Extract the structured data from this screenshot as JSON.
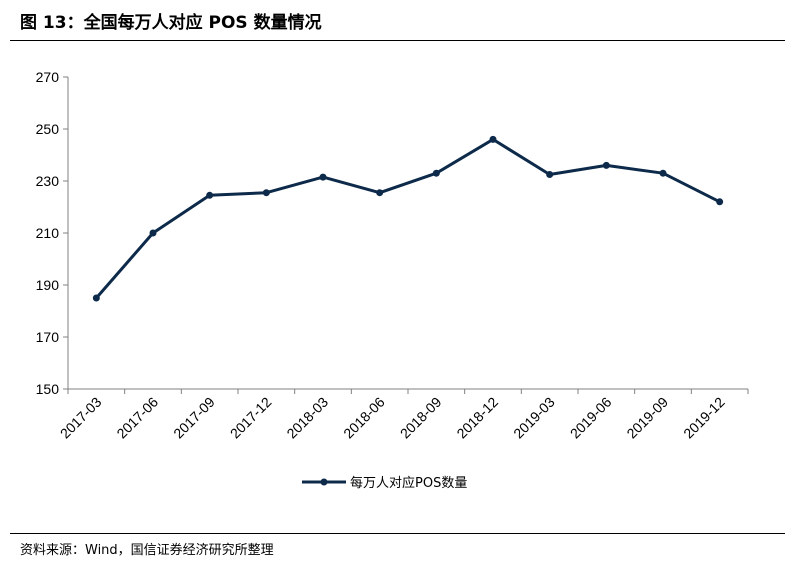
{
  "figure": {
    "title": "图 13：全国每万人对应 POS 数量情况",
    "source": "资料来源：Wind，国信证券经济研究所整理"
  },
  "chart_data": {
    "type": "line",
    "categories": [
      "2017-03",
      "2017-06",
      "2017-09",
      "2017-12",
      "2018-03",
      "2018-06",
      "2018-09",
      "2018-12",
      "2019-03",
      "2019-06",
      "2019-09",
      "2019-12"
    ],
    "series": [
      {
        "name": "每万人对应POS数量",
        "values": [
          185,
          210,
          224.5,
          225.5,
          231.5,
          225.5,
          233,
          246,
          232.5,
          236,
          233,
          222
        ]
      }
    ],
    "ylim": [
      150,
      270
    ],
    "yticks": [
      150,
      170,
      190,
      210,
      230,
      250,
      270
    ],
    "legend_position": "bottom-center",
    "grid": false,
    "colors": {
      "line": "#0d2a4a",
      "axis": "#808080"
    }
  }
}
